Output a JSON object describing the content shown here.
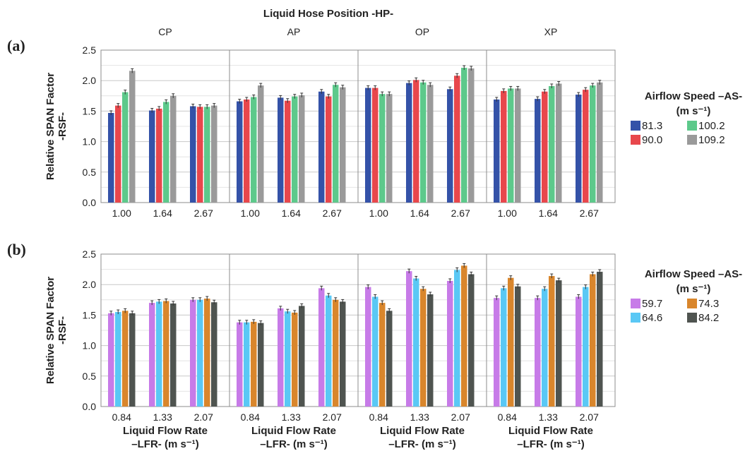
{
  "title": "Liquid Hose Position -HP-",
  "chart_data": [
    {
      "type": "bar",
      "panel_label": "(a)",
      "ylabel_line1": "Relative SPAN Factor",
      "ylabel_line2": "-RSF-",
      "ylim": [
        0,
        2.5
      ],
      "yticks": [
        "0.0",
        "0.5",
        "1.0",
        "1.5",
        "2.0",
        "2.5"
      ],
      "facets": [
        "CP",
        "AP",
        "OP",
        "XP"
      ],
      "categories": [
        "1.00",
        "1.64",
        "2.67"
      ],
      "legend": {
        "title_line1": "Airflow Speed –AS-",
        "title_line2": "(m s⁻¹)",
        "placement": "right"
      },
      "series": [
        {
          "name": "81.3",
          "color": "#3452a8",
          "values": [
            [
              1.47,
              1.51,
              1.58
            ],
            [
              1.66,
              1.72,
              1.82
            ],
            [
              1.88,
              1.96,
              1.86
            ],
            [
              1.69,
              1.7,
              1.77
            ]
          ]
        },
        {
          "name": "90.0",
          "color": "#e8474c",
          "values": [
            [
              1.59,
              1.54,
              1.57
            ],
            [
              1.69,
              1.67,
              1.74
            ],
            [
              1.88,
              2.01,
              2.08
            ],
            [
              1.83,
              1.82,
              1.85
            ]
          ]
        },
        {
          "name": "100.2",
          "color": "#5dc98b",
          "values": [
            [
              1.81,
              1.65,
              1.57
            ],
            [
              1.73,
              1.74,
              1.93
            ],
            [
              1.78,
              1.97,
              2.21
            ],
            [
              1.87,
              1.91,
              1.92
            ]
          ]
        },
        {
          "name": "109.2",
          "color": "#9a9a9a",
          "values": [
            [
              2.16,
              1.75,
              1.59
            ],
            [
              1.92,
              1.76,
              1.89
            ],
            [
              1.78,
              1.93,
              2.2
            ],
            [
              1.87,
              1.95,
              1.97
            ]
          ]
        }
      ]
    },
    {
      "type": "bar",
      "panel_label": "(b)",
      "ylabel_line1": "Relative SPAN Factor",
      "ylabel_line2": "-RSF-",
      "ylim": [
        0,
        2.5
      ],
      "yticks": [
        "0.0",
        "0.5",
        "1.0",
        "1.5",
        "2.0",
        "2.5"
      ],
      "facets": [
        "CP",
        "AP",
        "OP",
        "XP"
      ],
      "categories": [
        "0.84",
        "1.33",
        "2.07"
      ],
      "xlabel_line1": "Liquid Flow Rate",
      "xlabel_line2": "–LFR- (m s⁻¹)",
      "legend": {
        "title_line1": "Airflow Speed –AS-",
        "title_line2": "(m s⁻¹)",
        "placement": "right"
      },
      "series": [
        {
          "name": "59.7",
          "color": "#c77be8",
          "values": [
            [
              1.53,
              1.7,
              1.75
            ],
            [
              1.38,
              1.61,
              1.94
            ],
            [
              1.96,
              2.22,
              2.06
            ],
            [
              1.78,
              1.78,
              1.8
            ]
          ]
        },
        {
          "name": "64.6",
          "color": "#5ac8f5",
          "values": [
            [
              1.55,
              1.72,
              1.75
            ],
            [
              1.38,
              1.56,
              1.82
            ],
            [
              1.8,
              2.1,
              2.24
            ],
            [
              1.94,
              1.93,
              1.96
            ]
          ]
        },
        {
          "name": "74.3",
          "color": "#d9862c",
          "values": [
            [
              1.57,
              1.73,
              1.77
            ],
            [
              1.39,
              1.54,
              1.75
            ],
            [
              1.7,
              1.93,
              2.31
            ],
            [
              2.11,
              2.14,
              2.17
            ]
          ]
        },
        {
          "name": "84.2",
          "color": "#4f5450",
          "values": [
            [
              1.53,
              1.69,
              1.71
            ],
            [
              1.37,
              1.65,
              1.72
            ],
            [
              1.57,
              1.84,
              2.17
            ],
            [
              1.97,
              2.07,
              2.21
            ]
          ]
        }
      ]
    }
  ]
}
